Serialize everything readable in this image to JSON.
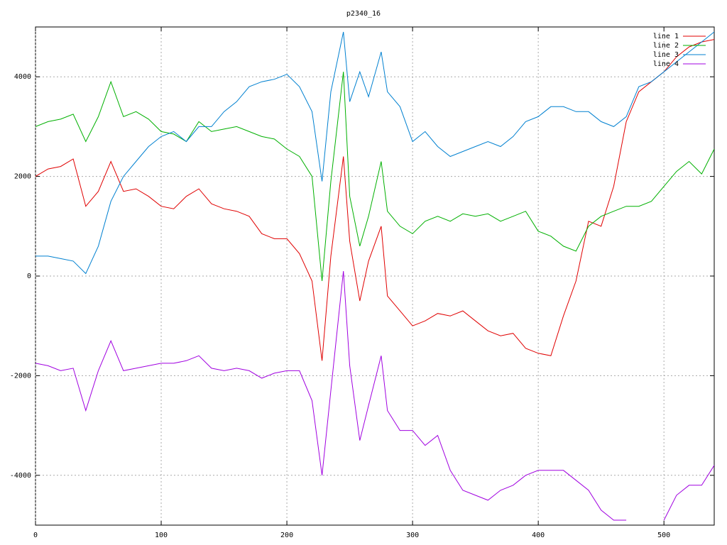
{
  "chart_data": {
    "type": "line",
    "title": "p2340_16",
    "x": [
      0,
      10,
      20,
      30,
      40,
      50,
      60,
      70,
      80,
      90,
      100,
      110,
      120,
      130,
      140,
      150,
      160,
      170,
      180,
      190,
      200,
      210,
      220,
      228,
      235,
      245,
      250,
      258,
      265,
      275,
      280,
      290,
      300,
      310,
      320,
      330,
      340,
      350,
      360,
      370,
      380,
      390,
      400,
      410,
      420,
      430,
      440,
      450,
      460,
      470,
      480,
      490,
      500,
      510,
      520,
      530,
      540
    ],
    "series": [
      {
        "name": "line 1",
        "color": "#e00000",
        "values": [
          2000,
          2150,
          2200,
          2350,
          1400,
          1700,
          2300,
          1700,
          1750,
          1600,
          1400,
          1350,
          1600,
          1750,
          1450,
          1350,
          1300,
          1200,
          850,
          750,
          750,
          450,
          -100,
          -1700,
          400,
          2400,
          700,
          -500,
          300,
          1000,
          -400,
          -700,
          -1000,
          -900,
          -750,
          -800,
          -700,
          -900,
          -1100,
          -1200,
          -1150,
          -1450,
          -1550,
          -1600,
          -800,
          -100,
          1100,
          1000,
          1800,
          3100,
          3700,
          3900,
          4100,
          4400,
          4600,
          4700,
          4750
        ]
      },
      {
        "name": "line 2",
        "color": "#00b000",
        "values": [
          3000,
          3100,
          3150,
          3250,
          2700,
          3200,
          3900,
          3200,
          3300,
          3150,
          2900,
          2850,
          2700,
          3100,
          2900,
          2950,
          3000,
          2900,
          2800,
          2750,
          2550,
          2400,
          2000,
          -100,
          1900,
          4100,
          1600,
          600,
          1200,
          2300,
          1300,
          1000,
          850,
          1100,
          1200,
          1100,
          1250,
          1200,
          1250,
          1100,
          1200,
          1300,
          900,
          800,
          600,
          500,
          1000,
          1200,
          1300,
          1400,
          1400,
          1500,
          1800,
          2100,
          2300,
          2050,
          2550
        ]
      },
      {
        "name": "line 3",
        "color": "#0080d0",
        "values": [
          400,
          400,
          350,
          300,
          50,
          600,
          1500,
          2000,
          2300,
          2600,
          2800,
          2900,
          2700,
          3000,
          3000,
          3300,
          3500,
          3800,
          3900,
          3950,
          4050,
          3800,
          3300,
          1900,
          3700,
          4900,
          3500,
          4100,
          3600,
          4500,
          3700,
          3400,
          2700,
          2900,
          2600,
          2400,
          2500,
          2600,
          2700,
          2600,
          2800,
          3100,
          3200,
          3400,
          3400,
          3300,
          3300,
          3100,
          3000,
          3200,
          3800,
          3900,
          4100,
          4300,
          4500,
          4700,
          4900
        ]
      },
      {
        "name": "line 4",
        "color": "#a000e0",
        "values": [
          -1750,
          -1800,
          -1900,
          -1850,
          -2700,
          -1900,
          -1300,
          -1900,
          -1850,
          -1800,
          -1750,
          -1750,
          -1700,
          -1600,
          -1850,
          -1900,
          -1850,
          -1900,
          -2050,
          -1950,
          -1900,
          -1900,
          -2500,
          -4000,
          -2300,
          100,
          -1800,
          -3300,
          -2600,
          -1600,
          -2700,
          -3100,
          -3100,
          -3400,
          -3200,
          -3900,
          -4300,
          -4400,
          -4500,
          -4300,
          -4200,
          -4000,
          -3900,
          -3900,
          -3900,
          -4100,
          -4300,
          -4700,
          -4900,
          -4900,
          null,
          null,
          -4900,
          -4400,
          -4200,
          -4200,
          -3800
        ]
      }
    ],
    "xlim": [
      0,
      540
    ],
    "ylim": [
      -5000,
      5000
    ],
    "xticks": [
      0,
      100,
      200,
      300,
      400,
      500
    ],
    "yticks": [
      -4000,
      -2000,
      0,
      2000,
      4000
    ],
    "grid": true,
    "legend": "top-right"
  }
}
